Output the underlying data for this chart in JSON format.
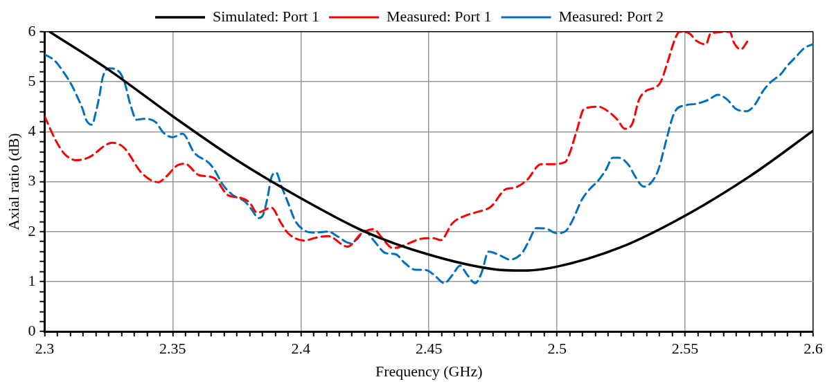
{
  "chart_data": {
    "type": "line",
    "xlabel": "Frequency (GHz)",
    "ylabel": "Axial ratio (dB)",
    "xlim": [
      2.3,
      2.6
    ],
    "ylim": [
      0,
      6
    ],
    "grid": true,
    "legend": "top",
    "marker": "none",
    "xticks": [
      2.3,
      {
        "value": 2.305,
        "label": null
      },
      {
        "value": 2.31,
        "label": null
      },
      {
        "value": 2.315,
        "label": null
      },
      {
        "value": 2.32,
        "label": null
      },
      {
        "value": 2.325,
        "label": null
      },
      {
        "value": 2.33,
        "label": null
      },
      {
        "value": 2.335,
        "label": null
      },
      {
        "value": 2.34,
        "label": null
      },
      {
        "value": 2.345,
        "label": null
      },
      2.35,
      {
        "value": 2.355,
        "label": null
      },
      {
        "value": 2.36,
        "label": null
      },
      {
        "value": 2.365,
        "label": null
      },
      {
        "value": 2.37,
        "label": null
      },
      {
        "value": 2.375,
        "label": null
      },
      {
        "value": 2.38,
        "label": null
      },
      {
        "value": 2.385,
        "label": null
      },
      {
        "value": 2.39,
        "label": null
      },
      {
        "value": 2.395,
        "label": null
      },
      2.4,
      {
        "value": 2.405,
        "label": null
      },
      {
        "value": 2.41,
        "label": null
      },
      {
        "value": 2.415,
        "label": null
      },
      {
        "value": 2.42,
        "label": null
      },
      {
        "value": 2.425,
        "label": null
      },
      {
        "value": 2.43,
        "label": null
      },
      {
        "value": 2.435,
        "label": null
      },
      {
        "value": 2.44,
        "label": null
      },
      {
        "value": 2.445,
        "label": null
      },
      2.45,
      {
        "value": 2.455,
        "label": null
      },
      {
        "value": 2.46,
        "label": null
      },
      {
        "value": 2.465,
        "label": null
      },
      {
        "value": 2.47,
        "label": null
      },
      {
        "value": 2.475,
        "label": null
      },
      {
        "value": 2.48,
        "label": null
      },
      {
        "value": 2.485,
        "label": null
      },
      {
        "value": 2.49,
        "label": null
      },
      {
        "value": 2.495,
        "label": null
      },
      2.5,
      {
        "value": 2.505,
        "label": null
      },
      {
        "value": 2.51,
        "label": null
      },
      {
        "value": 2.515,
        "label": null
      },
      {
        "value": 2.52,
        "label": null
      },
      {
        "value": 2.525,
        "label": null
      },
      {
        "value": 2.53,
        "label": null
      },
      {
        "value": 2.535,
        "label": null
      },
      {
        "value": 2.54,
        "label": null
      },
      {
        "value": 2.545,
        "label": null
      },
      2.55,
      {
        "value": 2.555,
        "label": null
      },
      {
        "value": 2.56,
        "label": null
      },
      {
        "value": 2.565,
        "label": null
      },
      {
        "value": 2.57,
        "label": null
      },
      {
        "value": 2.575,
        "label": null
      },
      {
        "value": 2.58,
        "label": null
      },
      {
        "value": 2.585,
        "label": null
      },
      {
        "value": 2.59,
        "label": null
      },
      {
        "value": 2.595,
        "label": null
      },
      2.6
    ],
    "yticks": [
      0,
      {
        "value": 0.2,
        "label": null
      },
      {
        "value": 0.4,
        "label": null
      },
      {
        "value": 0.6,
        "label": null
      },
      {
        "value": 0.8,
        "label": null
      },
      1,
      {
        "value": 1.2,
        "label": null
      },
      {
        "value": 1.4,
        "label": null
      },
      {
        "value": 1.6,
        "label": null
      },
      {
        "value": 1.8,
        "label": null
      },
      2,
      {
        "value": 2.2,
        "label": null
      },
      {
        "value": 2.4,
        "label": null
      },
      {
        "value": 2.6,
        "label": null
      },
      {
        "value": 2.8,
        "label": null
      },
      3,
      {
        "value": 3.2,
        "label": null
      },
      {
        "value": 3.4,
        "label": null
      },
      {
        "value": 3.6,
        "label": null
      },
      {
        "value": 3.8,
        "label": null
      },
      4,
      {
        "value": 4.2,
        "label": null
      },
      {
        "value": 4.4,
        "label": null
      },
      {
        "value": 4.6,
        "label": null
      },
      {
        "value": 4.8,
        "label": null
      },
      5,
      {
        "value": 5.2,
        "label": null
      },
      {
        "value": 5.4,
        "label": null
      },
      {
        "value": 5.6,
        "label": null
      },
      {
        "value": 5.8,
        "label": null
      },
      6
    ],
    "series": [
      {
        "name": "Simulated: Port 1",
        "color": "#000000",
        "line_style": "solid",
        "x": [
          2.302,
          2.325,
          2.35,
          2.375,
          2.4,
          2.425,
          2.45,
          2.475,
          2.487,
          2.5,
          2.525,
          2.55,
          2.575,
          2.6
        ],
        "values": [
          6.0,
          5.24,
          4.31,
          3.43,
          2.67,
          2.0,
          1.54,
          1.25,
          1.22,
          1.3,
          1.69,
          2.32,
          3.1,
          4.02
        ]
      },
      {
        "name": "Measured: Port 1",
        "color": "#ff0000",
        "line_style": "dashed",
        "x": [
          2.3,
          2.304,
          2.3077,
          2.3124,
          2.317,
          2.3265,
          2.331,
          2.3378,
          2.3443,
          2.347,
          2.3519,
          2.3547,
          2.3603,
          2.366,
          2.3716,
          2.3763,
          2.38,
          2.383,
          2.3885,
          2.3923,
          2.395,
          2.4016,
          2.4051,
          2.4107,
          2.4182,
          2.4238,
          2.4285,
          2.4313,
          2.436,
          2.4424,
          2.4462,
          2.4518,
          2.4546,
          2.4592,
          2.4648,
          2.4686,
          2.4742,
          2.48,
          2.4835,
          2.4882,
          2.4938,
          2.4975,
          2.5031,
          2.505,
          2.5078,
          2.5106,
          2.5162,
          2.5199,
          2.5236,
          2.5264,
          2.5292,
          2.532,
          2.5348,
          2.5385,
          2.5404,
          2.5432,
          2.546,
          2.5478,
          2.5516,
          2.5544,
          2.5581,
          2.56,
          2.5675,
          2.5689,
          2.5717,
          2.5745
        ],
        "values": [
          4.31,
          3.86,
          3.56,
          3.43,
          3.48,
          3.78,
          3.68,
          3.18,
          2.99,
          3.08,
          3.33,
          3.36,
          3.13,
          3.08,
          2.73,
          2.68,
          2.58,
          2.38,
          2.48,
          2.17,
          1.97,
          1.82,
          1.87,
          1.91,
          1.7,
          1.97,
          2.05,
          1.9,
          1.67,
          1.77,
          1.85,
          1.87,
          1.83,
          2.17,
          2.33,
          2.39,
          2.5,
          2.85,
          2.88,
          3.03,
          3.35,
          3.35,
          3.39,
          3.58,
          4.04,
          4.46,
          4.5,
          4.41,
          4.24,
          4.06,
          4.14,
          4.64,
          4.82,
          4.89,
          4.99,
          5.4,
          5.85,
          6.0,
          5.97,
          5.82,
          5.75,
          5.97,
          6.0,
          5.8,
          5.65,
          5.82
        ]
      },
      {
        "name": "Measured: Port 2",
        "color": "#0070c0",
        "line_style": "dashed",
        "x": [
          2.3,
          2.304,
          2.3077,
          2.3105,
          2.3124,
          2.3148,
          2.3162,
          2.3185,
          2.32,
          2.3213,
          2.3227,
          2.3251,
          2.3293,
          2.3312,
          2.3335,
          2.3359,
          2.3387,
          2.3434,
          2.3462,
          2.35,
          2.3538,
          2.3584,
          2.364,
          2.366,
          2.3697,
          2.3735,
          2.3782,
          2.381,
          2.3834,
          2.3852,
          2.387,
          2.3885,
          2.3904,
          2.3923,
          2.395,
          2.3978,
          2.4016,
          2.4051,
          2.4107,
          2.4145,
          2.4191,
          2.422,
          2.4248,
          2.4285,
          2.4332,
          2.4369,
          2.4406,
          2.4444,
          2.449,
          2.4523,
          2.456,
          2.4593,
          2.4621,
          2.4649,
          2.4681,
          2.4705,
          2.4733,
          2.478,
          2.4816,
          2.4863,
          2.4891,
          2.4919,
          2.4957,
          2.4999,
          2.5031,
          2.5058,
          2.5096,
          2.5124,
          2.5162,
          2.519,
          2.5218,
          2.5241,
          2.5283,
          2.5302,
          2.5339,
          2.5367,
          2.5395,
          2.5414,
          2.5432,
          2.5451,
          2.5465,
          2.5502,
          2.5544,
          2.5591,
          2.5628,
          2.5665,
          2.5698,
          2.574,
          2.5772,
          2.5805,
          2.5833,
          2.5871,
          2.5899,
          2.5936,
          2.5964,
          2.5997
        ],
        "values": [
          5.55,
          5.42,
          5.17,
          4.94,
          4.74,
          4.46,
          4.24,
          4.14,
          4.39,
          4.69,
          5.09,
          5.27,
          5.19,
          4.99,
          4.54,
          4.24,
          4.26,
          4.19,
          3.99,
          3.89,
          3.96,
          3.58,
          3.38,
          3.26,
          2.93,
          2.73,
          2.6,
          2.43,
          2.27,
          2.33,
          2.68,
          3.08,
          3.18,
          2.93,
          2.58,
          2.22,
          2.02,
          1.98,
          2.0,
          1.9,
          1.77,
          1.85,
          2.02,
          1.82,
          1.57,
          1.55,
          1.37,
          1.24,
          1.23,
          1.12,
          0.97,
          1.14,
          1.32,
          1.14,
          0.97,
          1.17,
          1.6,
          1.52,
          1.44,
          1.57,
          1.82,
          2.07,
          2.06,
          1.97,
          2.0,
          2.2,
          2.63,
          2.83,
          3.03,
          3.23,
          3.48,
          3.48,
          3.31,
          3.13,
          2.9,
          2.98,
          3.23,
          3.58,
          3.94,
          4.29,
          4.44,
          4.53,
          4.56,
          4.64,
          4.74,
          4.64,
          4.46,
          4.41,
          4.54,
          4.82,
          4.99,
          5.14,
          5.32,
          5.52,
          5.67,
          5.75
        ]
      }
    ]
  }
}
